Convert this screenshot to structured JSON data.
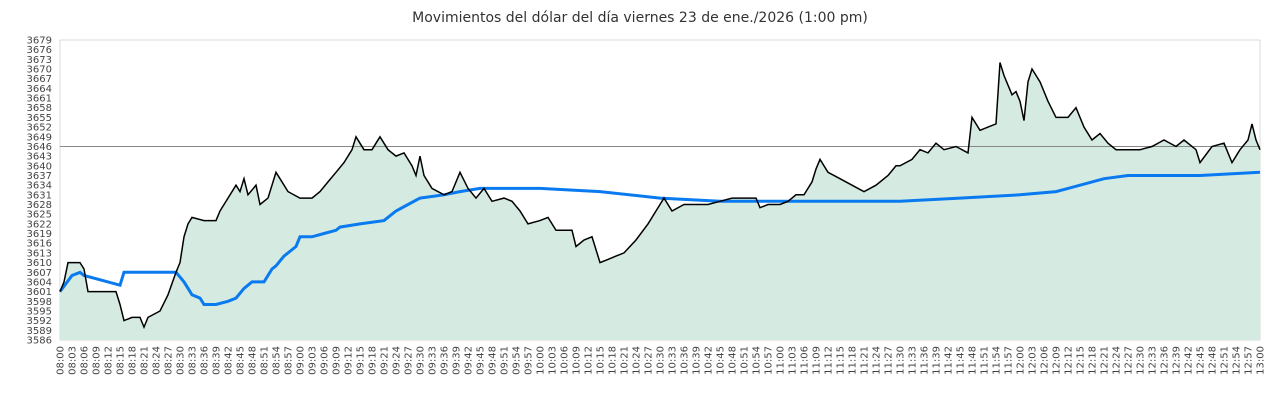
{
  "chart_data": {
    "type": "area",
    "title": "Movimientos del dólar del día viernes 23 de ene./2026 (1:00 pm)",
    "xlabel": "",
    "ylabel": "",
    "ylim": [
      3586,
      3679
    ],
    "ystep": 3,
    "xstart": "08:00",
    "xend": "13:00",
    "xstep_minutes": 3,
    "grid": false,
    "reference_line": {
      "value": 3646,
      "color": "#888888"
    },
    "colors": {
      "price": "#000000",
      "fill": "#d5ebe2",
      "average": "#0a7af0"
    },
    "series": [
      {
        "name": "price",
        "points": [
          [
            0,
            3601
          ],
          [
            1,
            3604
          ],
          [
            2,
            3610
          ],
          [
            5,
            3610
          ],
          [
            6,
            3608
          ],
          [
            7,
            3601
          ],
          [
            14,
            3601
          ],
          [
            15,
            3597
          ],
          [
            16,
            3592
          ],
          [
            18,
            3593
          ],
          [
            20,
            3593
          ],
          [
            21,
            3590
          ],
          [
            22,
            3593
          ],
          [
            25,
            3595
          ],
          [
            27,
            3600
          ],
          [
            29,
            3607
          ],
          [
            30,
            3610
          ],
          [
            31,
            3618
          ],
          [
            32,
            3622
          ],
          [
            33,
            3624
          ],
          [
            36,
            3623
          ],
          [
            39,
            3623
          ],
          [
            40,
            3626
          ],
          [
            42,
            3630
          ],
          [
            44,
            3634
          ],
          [
            45,
            3632
          ],
          [
            46,
            3636
          ],
          [
            47,
            3631
          ],
          [
            49,
            3634
          ],
          [
            50,
            3628
          ],
          [
            52,
            3630
          ],
          [
            54,
            3638
          ],
          [
            55,
            3636
          ],
          [
            57,
            3632
          ],
          [
            60,
            3630
          ],
          [
            63,
            3630
          ],
          [
            65,
            3632
          ],
          [
            67,
            3635
          ],
          [
            69,
            3638
          ],
          [
            71,
            3641
          ],
          [
            73,
            3645
          ],
          [
            74,
            3649
          ],
          [
            76,
            3645
          ],
          [
            78,
            3645
          ],
          [
            79,
            3647
          ],
          [
            80,
            3649
          ],
          [
            82,
            3645
          ],
          [
            84,
            3643
          ],
          [
            86,
            3644
          ],
          [
            88,
            3640
          ],
          [
            89,
            3637
          ],
          [
            90,
            3643
          ],
          [
            91,
            3637
          ],
          [
            93,
            3633
          ],
          [
            96,
            3631
          ],
          [
            98,
            3632
          ],
          [
            100,
            3638
          ],
          [
            102,
            3633
          ],
          [
            104,
            3630
          ],
          [
            106,
            3633
          ],
          [
            108,
            3629
          ],
          [
            111,
            3630
          ],
          [
            113,
            3629
          ],
          [
            115,
            3626
          ],
          [
            117,
            3622
          ],
          [
            120,
            3623
          ],
          [
            122,
            3624
          ],
          [
            124,
            3620
          ],
          [
            128,
            3620
          ],
          [
            129,
            3615
          ],
          [
            131,
            3617
          ],
          [
            133,
            3618
          ],
          [
            135,
            3610
          ],
          [
            137,
            3611
          ],
          [
            139,
            3612
          ],
          [
            141,
            3613
          ],
          [
            144,
            3617
          ],
          [
            147,
            3622
          ],
          [
            150,
            3628
          ],
          [
            151,
            3630
          ],
          [
            153,
            3626
          ],
          [
            156,
            3628
          ],
          [
            159,
            3628
          ],
          [
            162,
            3628
          ],
          [
            165,
            3629
          ],
          [
            168,
            3630
          ],
          [
            171,
            3630
          ],
          [
            174,
            3630
          ],
          [
            175,
            3627
          ],
          [
            177,
            3628
          ],
          [
            180,
            3628
          ],
          [
            182,
            3629
          ],
          [
            184,
            3631
          ],
          [
            186,
            3631
          ],
          [
            188,
            3635
          ],
          [
            189,
            3639
          ],
          [
            190,
            3642
          ],
          [
            192,
            3638
          ],
          [
            195,
            3636
          ],
          [
            198,
            3634
          ],
          [
            201,
            3632
          ],
          [
            204,
            3634
          ],
          [
            207,
            3637
          ],
          [
            209,
            3640
          ],
          [
            210,
            3640
          ],
          [
            213,
            3642
          ],
          [
            215,
            3645
          ],
          [
            217,
            3644
          ],
          [
            219,
            3647
          ],
          [
            221,
            3645
          ],
          [
            224,
            3646
          ],
          [
            227,
            3644
          ],
          [
            228,
            3655
          ],
          [
            230,
            3651
          ],
          [
            232,
            3652
          ],
          [
            234,
            3653
          ],
          [
            235,
            3672
          ],
          [
            236,
            3668
          ],
          [
            238,
            3662
          ],
          [
            239,
            3663
          ],
          [
            240,
            3660
          ],
          [
            241,
            3654
          ],
          [
            242,
            3666
          ],
          [
            243,
            3670
          ],
          [
            245,
            3666
          ],
          [
            247,
            3660
          ],
          [
            249,
            3655
          ],
          [
            252,
            3655
          ],
          [
            254,
            3658
          ],
          [
            256,
            3652
          ],
          [
            258,
            3648
          ],
          [
            260,
            3650
          ],
          [
            262,
            3647
          ],
          [
            264,
            3645
          ],
          [
            267,
            3645
          ],
          [
            270,
            3645
          ],
          [
            273,
            3646
          ],
          [
            276,
            3648
          ],
          [
            279,
            3646
          ],
          [
            281,
            3648
          ],
          [
            284,
            3645
          ],
          [
            285,
            3641
          ],
          [
            288,
            3646
          ],
          [
            291,
            3647
          ],
          [
            293,
            3641
          ],
          [
            295,
            3645
          ],
          [
            297,
            3648
          ],
          [
            298,
            3653
          ],
          [
            299,
            3648
          ],
          [
            300,
            3645
          ]
        ]
      },
      {
        "name": "average",
        "points": [
          [
            0,
            3601
          ],
          [
            3,
            3606
          ],
          [
            5,
            3607
          ],
          [
            6,
            3606
          ],
          [
            9,
            3605
          ],
          [
            12,
            3604
          ],
          [
            15,
            3603
          ],
          [
            16,
            3607
          ],
          [
            21,
            3607
          ],
          [
            27,
            3607
          ],
          [
            29,
            3607
          ],
          [
            31,
            3604
          ],
          [
            33,
            3600
          ],
          [
            35,
            3599
          ],
          [
            36,
            3597
          ],
          [
            39,
            3597
          ],
          [
            42,
            3598
          ],
          [
            44,
            3599
          ],
          [
            46,
            3602
          ],
          [
            48,
            3604
          ],
          [
            51,
            3604
          ],
          [
            53,
            3608
          ],
          [
            54,
            3609
          ],
          [
            56,
            3612
          ],
          [
            59,
            3615
          ],
          [
            60,
            3618
          ],
          [
            63,
            3618
          ],
          [
            66,
            3619
          ],
          [
            69,
            3620
          ],
          [
            70,
            3621
          ],
          [
            75,
            3622
          ],
          [
            81,
            3623
          ],
          [
            84,
            3626
          ],
          [
            87,
            3628
          ],
          [
            90,
            3630
          ],
          [
            96,
            3631
          ],
          [
            100,
            3632
          ],
          [
            105,
            3633
          ],
          [
            120,
            3633
          ],
          [
            135,
            3632
          ],
          [
            150,
            3630
          ],
          [
            165,
            3629
          ],
          [
            180,
            3629
          ],
          [
            210,
            3629
          ],
          [
            225,
            3630
          ],
          [
            240,
            3631
          ],
          [
            249,
            3632
          ],
          [
            252,
            3633
          ],
          [
            255,
            3634
          ],
          [
            261,
            3636
          ],
          [
            267,
            3637
          ],
          [
            285,
            3637
          ],
          [
            300,
            3638
          ]
        ]
      }
    ]
  }
}
